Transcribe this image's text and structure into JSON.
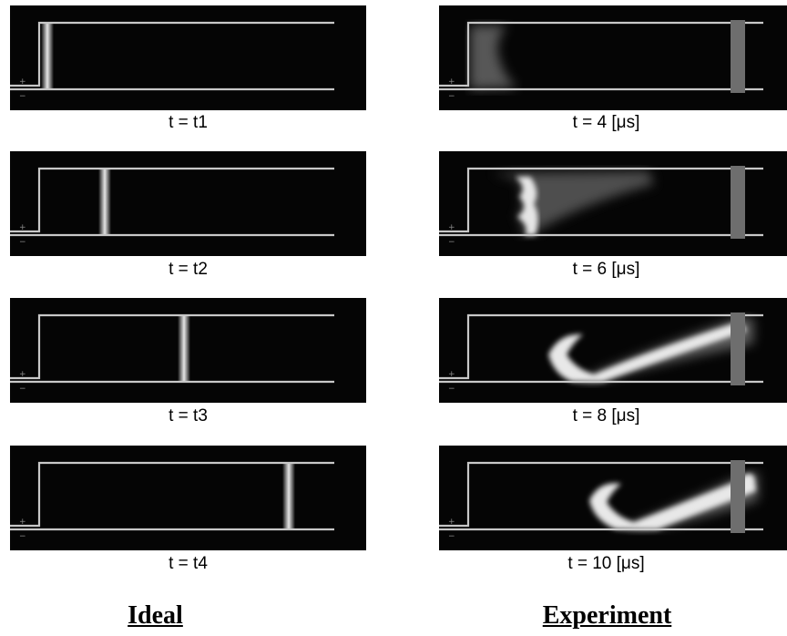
{
  "columns": [
    {
      "footer": "Ideal",
      "panels": [
        {
          "caption": "t = t1",
          "front_position": 0.03
        },
        {
          "caption": "t = t2",
          "front_position": 0.21
        },
        {
          "caption": "t = t3",
          "front_position": 0.5
        },
        {
          "caption": "t = t4",
          "front_position": 0.85
        }
      ]
    },
    {
      "footer": "Experiment",
      "panels": [
        {
          "caption": "t = 4 [μs]"
        },
        {
          "caption": "t = 6 [μs]"
        },
        {
          "caption": "t = 8 [μs]"
        },
        {
          "caption": "t = 10 [μs]"
        }
      ]
    }
  ],
  "electrode_labels": {
    "plus": "+",
    "minus": "−"
  },
  "colors": {
    "background": "#050505",
    "electrode": "#c8c8c8",
    "marker": "#6e6e6e",
    "glow": "#e6e6e6"
  }
}
